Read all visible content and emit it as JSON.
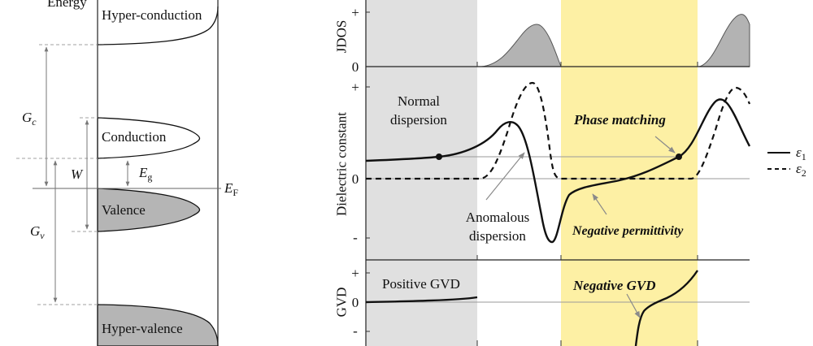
{
  "colors": {
    "normal_region": "#e0e0e0",
    "anomalous_region": "#fdf0a4",
    "band_fill": "#b5b5b5",
    "peak_fill": "#b3b3b3",
    "curve": "#111111",
    "guide": "#9a9a9a"
  },
  "band_diagram": {
    "axis_label": "Energy",
    "bands": {
      "hyper_conduction": "Hyper-conduction",
      "conduction": "Conduction",
      "valence": "Valence",
      "hyper_valence": "Hyper-valence"
    },
    "gaps": {
      "Gc": {
        "symbol": "G",
        "sub": "c"
      },
      "W": {
        "symbol": "W"
      },
      "Eg": {
        "symbol": "E",
        "sub": "g"
      },
      "EF": {
        "symbol": "E",
        "sub": "F"
      },
      "Gv": {
        "symbol": "G",
        "sub": "v"
      }
    }
  },
  "spectra": {
    "jdos": {
      "ylabel": "JDOS",
      "ticks": [
        "+",
        "0"
      ]
    },
    "dielectric": {
      "ylabel": "Dielectric constant",
      "ticks": [
        "+",
        "0",
        "-"
      ],
      "annotations": {
        "normal_dispersion": [
          "Normal",
          "dispersion"
        ],
        "phase_matching": "Phase matching",
        "anomalous_dispersion": [
          "Anomalous",
          "dispersion"
        ],
        "negative_permittivity": "Negative permittivity"
      }
    },
    "gvd": {
      "ylabel": "GVD",
      "ticks": [
        "+",
        "0",
        "-"
      ],
      "annotations": {
        "positive_gvd": "Positive GVD",
        "negative_gvd": "Negative GVD"
      }
    },
    "legend": [
      {
        "symbol": "ε",
        "sub": "1",
        "line": "solid"
      },
      {
        "symbol": "ε",
        "sub": "2",
        "line": "dashed"
      }
    ]
  }
}
